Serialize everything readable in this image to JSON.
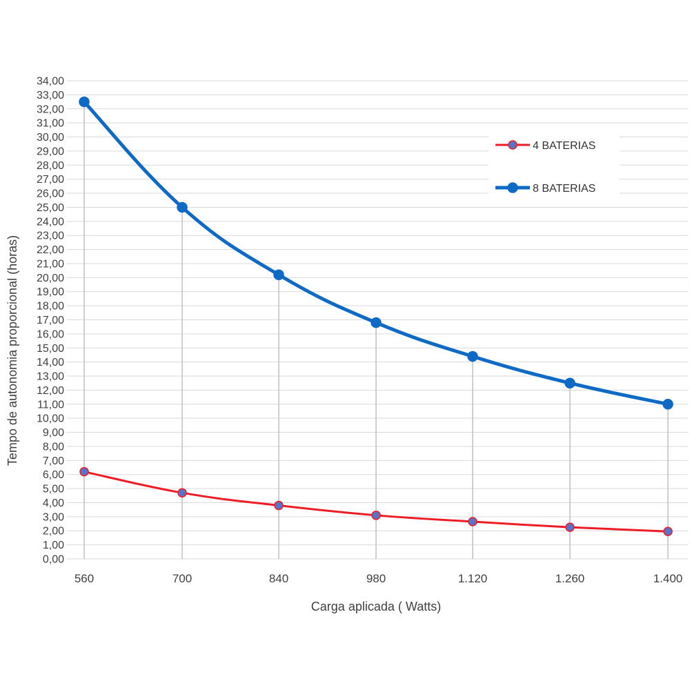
{
  "chart_data": {
    "type": "line",
    "xlabel": "Carga aplicada ( Watts)",
    "ylabel": "Tempo de autonomia  proporcional (horas)",
    "categories": [
      "560",
      "700",
      "840",
      "980",
      "1.120",
      "1.260",
      "1.400"
    ],
    "y_ticks": [
      "0,00",
      "1,00",
      "2,00",
      "3,00",
      "4,00",
      "5,00",
      "6,00",
      "7,00",
      "8,00",
      "9,00",
      "10,00",
      "11,00",
      "12,00",
      "13,00",
      "14,00",
      "15,00",
      "16,00",
      "17,00",
      "18,00",
      "19,00",
      "20,00",
      "21,00",
      "22,00",
      "23,00",
      "24,00",
      "25,00",
      "26,00",
      "27,00",
      "28,00",
      "29,00",
      "30,00",
      "31,00",
      "32,00",
      "33,00",
      "34,00"
    ],
    "ylim": [
      0,
      34
    ],
    "grid": true,
    "drop_lines": true,
    "legend_position": "top-right",
    "series": [
      {
        "name": "4 BATERIAS",
        "color": "#ee1c25",
        "marker_color": "#5b73c4",
        "values": [
          6.2,
          4.7,
          3.8,
          3.1,
          2.65,
          2.25,
          1.95
        ]
      },
      {
        "name": "8 BATERIAS",
        "color": "#0e6ac4",
        "marker_color": "#0e6ac4",
        "values": [
          32.5,
          25.0,
          20.2,
          16.8,
          14.4,
          12.5,
          11.0
        ]
      }
    ]
  }
}
